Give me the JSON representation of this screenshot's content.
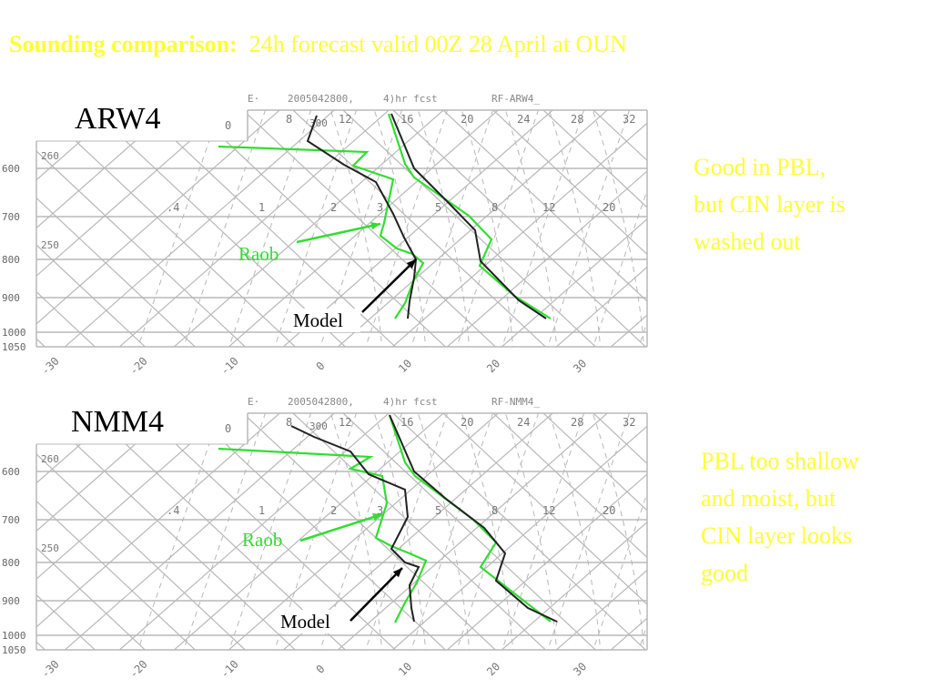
{
  "title": {
    "bold": "Sounding comparison:",
    "rest": "24h forecast valid 00Z 28 April at OUN"
  },
  "panels": [
    {
      "id": "arw4",
      "label": "ARW4",
      "header": [
        "E·",
        "2005042800,",
        "4)hr fcst",
        "RF-ARW4_"
      ],
      "notes": [
        "Good in PBL,",
        "but CIN layer is",
        "washed out"
      ],
      "raob_label": "Raob",
      "model_label": "Model"
    },
    {
      "id": "nmm4",
      "label": "NMM4",
      "header": [
        "E·",
        "2005042800,",
        "4)hr fcst",
        "RF-NMM4_"
      ],
      "notes": [
        "PBL too shallow",
        "and moist, but",
        "CIN layer looks",
        "good"
      ],
      "raob_label": "Raob",
      "model_label": "Model"
    }
  ],
  "diagram": {
    "pressure_levels": [
      "600",
      "700",
      "800",
      "900",
      "1000",
      "1050"
    ],
    "temperature_ticks": [
      "-30",
      "-20",
      "-10",
      "0",
      "10",
      "20",
      "30"
    ],
    "top_ticks": [
      "0",
      "8",
      "12",
      "16",
      "20",
      "24",
      "28",
      "32"
    ],
    "theta_labels": [
      "260",
      "250",
      "300"
    ],
    "mixing_ratio_labels": [
      ".4",
      "1",
      "2",
      "3",
      "5",
      "8",
      "12",
      "20"
    ]
  },
  "colors": {
    "title": "#ffff33",
    "raob": "#33dd33",
    "model": "#222222",
    "grid": "#b8b8b8"
  }
}
